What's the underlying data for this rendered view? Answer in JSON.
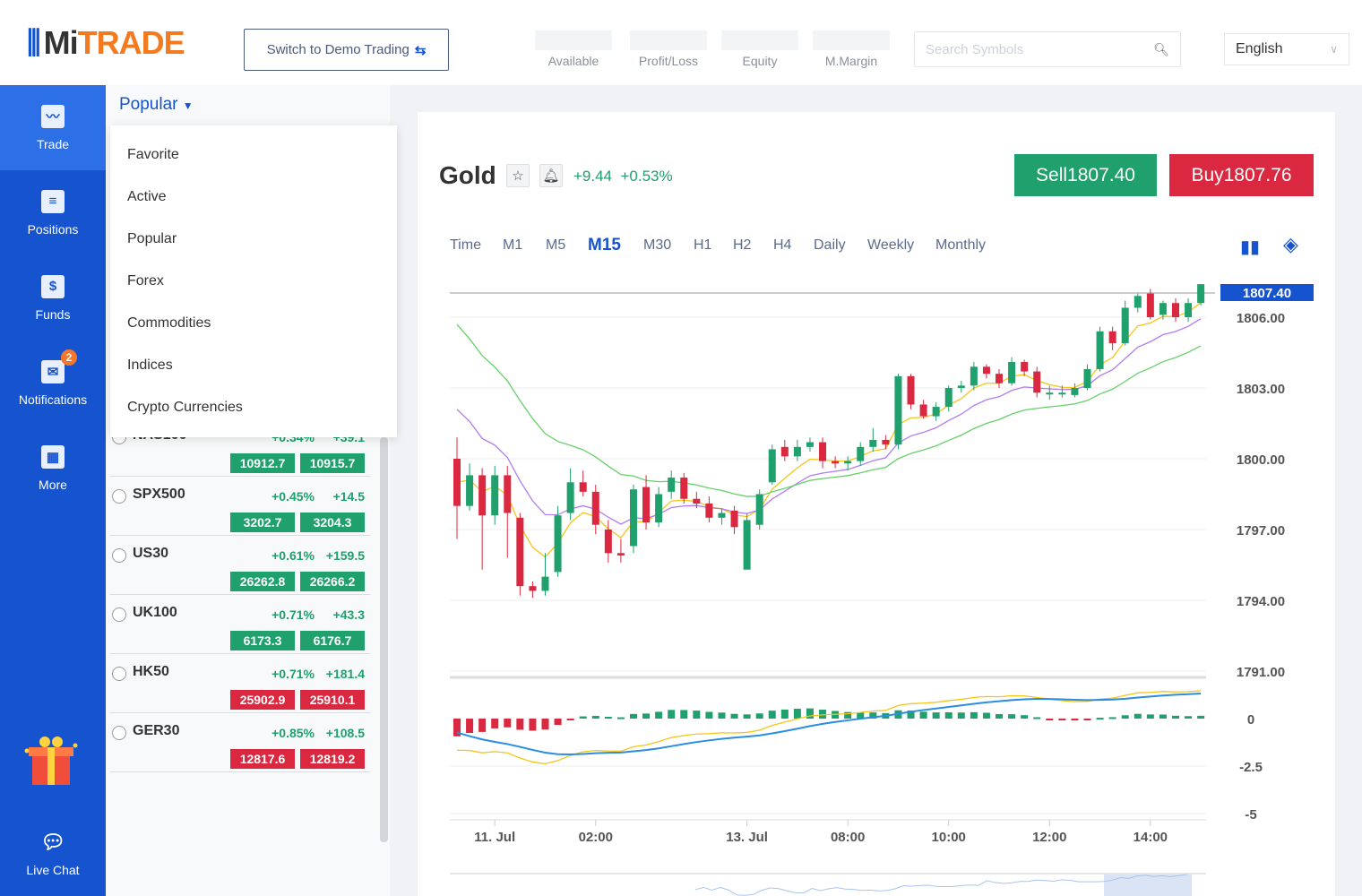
{
  "header": {
    "logo": "MiTRADE",
    "switch_label": "Switch to Demo Trading",
    "stats": [
      "Available",
      "Profit/Loss",
      "Equity",
      "M.Margin"
    ],
    "search_placeholder": "Search Symbols",
    "language": "English"
  },
  "sidebar": {
    "items": [
      {
        "label": "Trade",
        "icon": "chart-icon"
      },
      {
        "label": "Positions",
        "icon": "clipboard-icon"
      },
      {
        "label": "Funds",
        "icon": "dollar-icon"
      },
      {
        "label": "Notifications",
        "icon": "mail-icon",
        "badge": "2"
      },
      {
        "label": "More",
        "icon": "grid-icon"
      }
    ],
    "live_chat": "Live Chat"
  },
  "panel": {
    "category": "Popular",
    "menu": [
      "Favorite",
      "Active",
      "Popular",
      "Forex",
      "Commodities",
      "Indices",
      "Crypto Currencies"
    ],
    "rows": [
      {
        "symbol": "NAS100",
        "pct": "+0.34%",
        "chg": "+39.1",
        "sell": "10912.7",
        "buy": "10915.7",
        "dir": "up"
      },
      {
        "symbol": "SPX500",
        "pct": "+0.45%",
        "chg": "+14.5",
        "sell": "3202.7",
        "buy": "3204.3",
        "dir": "up"
      },
      {
        "symbol": "US30",
        "pct": "+0.61%",
        "chg": "+159.5",
        "sell": "26262.8",
        "buy": "26266.2",
        "dir": "up"
      },
      {
        "symbol": "UK100",
        "pct": "+0.71%",
        "chg": "+43.3",
        "sell": "6173.3",
        "buy": "6176.7",
        "dir": "up"
      },
      {
        "symbol": "HK50",
        "pct": "+0.71%",
        "chg": "+181.4",
        "sell": "25902.9",
        "buy": "25910.1",
        "dir": "down"
      },
      {
        "symbol": "GER30",
        "pct": "+0.85%",
        "chg": "+108.5",
        "sell": "12817.6",
        "buy": "12819.2",
        "dir": "down"
      }
    ]
  },
  "instrument": {
    "name": "Gold",
    "change": "+9.44",
    "change_pct": "+0.53%",
    "sell": "Sell1807.40",
    "buy": "Buy1807.76"
  },
  "timeframes": [
    "Time",
    "M1",
    "M5",
    "M15",
    "M30",
    "H1",
    "H2",
    "H4",
    "Daily",
    "Weekly",
    "Monthly"
  ],
  "active_timeframe": "M15",
  "colors": {
    "brand": "#1553cf",
    "up": "#1fa06c",
    "down": "#d9283f"
  },
  "chart_data": {
    "type": "candlestick",
    "current_price": "1807.40",
    "y_ticks": [
      "1806.00",
      "1803.00",
      "1800.00",
      "1797.00",
      "1794.00",
      "1791.00"
    ],
    "y_values": [
      1806,
      1803,
      1800,
      1797,
      1794,
      1791
    ],
    "macd_ticks": [
      "0",
      "-2.5",
      "-5"
    ],
    "x_labels": [
      {
        "label": "11. Jul",
        "index": 3
      },
      {
        "label": "02:00",
        "index": 11
      },
      {
        "label": "13. Jul",
        "index": 23
      },
      {
        "label": "08:00",
        "index": 31
      },
      {
        "label": "10:00",
        "index": 39
      },
      {
        "label": "12:00",
        "index": 47
      },
      {
        "label": "14:00",
        "index": 55
      }
    ],
    "ohlc": [
      [
        1800.0,
        1800.9,
        1796.6,
        1798.0
      ],
      [
        1798.0,
        1799.8,
        1797.8,
        1799.3
      ],
      [
        1799.3,
        1799.6,
        1795.3,
        1797.6
      ],
      [
        1797.6,
        1799.7,
        1797.2,
        1799.3
      ],
      [
        1799.3,
        1799.7,
        1795.8,
        1797.7
      ],
      [
        1797.5,
        1797.7,
        1794.2,
        1794.6
      ],
      [
        1794.6,
        1794.8,
        1794.1,
        1794.4
      ],
      [
        1794.4,
        1796.0,
        1794.2,
        1795.0
      ],
      [
        1795.2,
        1798.0,
        1795.0,
        1797.6
      ],
      [
        1797.7,
        1799.6,
        1797.4,
        1799.0
      ],
      [
        1799.0,
        1799.5,
        1798.4,
        1798.6
      ],
      [
        1798.6,
        1798.9,
        1796.8,
        1797.2
      ],
      [
        1797.0,
        1797.4,
        1795.6,
        1796.0
      ],
      [
        1796.0,
        1796.6,
        1795.6,
        1795.9
      ],
      [
        1796.3,
        1798.9,
        1796.0,
        1798.7
      ],
      [
        1798.8,
        1799.3,
        1797.0,
        1797.3
      ],
      [
        1797.3,
        1798.8,
        1797.1,
        1798.5
      ],
      [
        1798.6,
        1799.5,
        1798.3,
        1799.2
      ],
      [
        1799.2,
        1799.4,
        1798.1,
        1798.3
      ],
      [
        1798.3,
        1798.6,
        1797.9,
        1798.1
      ],
      [
        1798.1,
        1798.4,
        1797.3,
        1797.5
      ],
      [
        1797.5,
        1797.9,
        1797.2,
        1797.7
      ],
      [
        1797.8,
        1798.0,
        1796.8,
        1797.1
      ],
      [
        1795.3,
        1797.7,
        1795.3,
        1797.4
      ],
      [
        1797.2,
        1798.7,
        1797.0,
        1798.5
      ],
      [
        1799.0,
        1800.6,
        1798.9,
        1800.4
      ],
      [
        1800.5,
        1800.8,
        1799.9,
        1800.1
      ],
      [
        1800.1,
        1800.8,
        1799.9,
        1800.5
      ],
      [
        1800.5,
        1800.9,
        1800.3,
        1800.7
      ],
      [
        1800.7,
        1800.9,
        1799.6,
        1799.9
      ],
      [
        1799.9,
        1800.1,
        1799.6,
        1799.8
      ],
      [
        1799.8,
        1800.1,
        1799.5,
        1799.9
      ],
      [
        1799.9,
        1800.7,
        1799.7,
        1800.5
      ],
      [
        1800.5,
        1801.3,
        1800.3,
        1800.8
      ],
      [
        1800.8,
        1801.0,
        1800.4,
        1800.6
      ],
      [
        1800.6,
        1803.6,
        1800.4,
        1803.5
      ],
      [
        1803.5,
        1803.6,
        1802.1,
        1802.3
      ],
      [
        1802.3,
        1802.5,
        1801.7,
        1801.8
      ],
      [
        1801.8,
        1802.4,
        1801.6,
        1802.2
      ],
      [
        1802.2,
        1803.1,
        1802.0,
        1803.0
      ],
      [
        1803.0,
        1803.3,
        1802.8,
        1803.1
      ],
      [
        1803.1,
        1804.1,
        1802.9,
        1803.9
      ],
      [
        1803.9,
        1804.0,
        1803.4,
        1803.6
      ],
      [
        1803.6,
        1803.8,
        1803.0,
        1803.2
      ],
      [
        1803.2,
        1804.3,
        1803.1,
        1804.1
      ],
      [
        1804.1,
        1804.2,
        1803.5,
        1803.7
      ],
      [
        1803.7,
        1803.9,
        1802.6,
        1802.8
      ],
      [
        1802.8,
        1803.1,
        1802.5,
        1802.8
      ],
      [
        1802.8,
        1803.1,
        1802.6,
        1802.8
      ],
      [
        1802.7,
        1803.2,
        1802.6,
        1803.0
      ],
      [
        1803.0,
        1804.0,
        1802.9,
        1803.8
      ],
      [
        1803.8,
        1805.6,
        1803.7,
        1805.4
      ],
      [
        1805.4,
        1805.6,
        1804.6,
        1804.9
      ],
      [
        1804.9,
        1806.7,
        1804.8,
        1806.4
      ],
      [
        1806.4,
        1807.0,
        1806.2,
        1806.9
      ],
      [
        1807.0,
        1807.2,
        1805.9,
        1806.0
      ],
      [
        1806.1,
        1806.7,
        1805.9,
        1806.6
      ],
      [
        1806.6,
        1806.8,
        1805.8,
        1806.0
      ],
      [
        1806.0,
        1806.8,
        1805.8,
        1806.6
      ],
      [
        1806.6,
        1807.4,
        1806.5,
        1807.4
      ]
    ],
    "moving_averages": [
      "yellow",
      "purple",
      "green"
    ],
    "indicator": "MACD"
  }
}
